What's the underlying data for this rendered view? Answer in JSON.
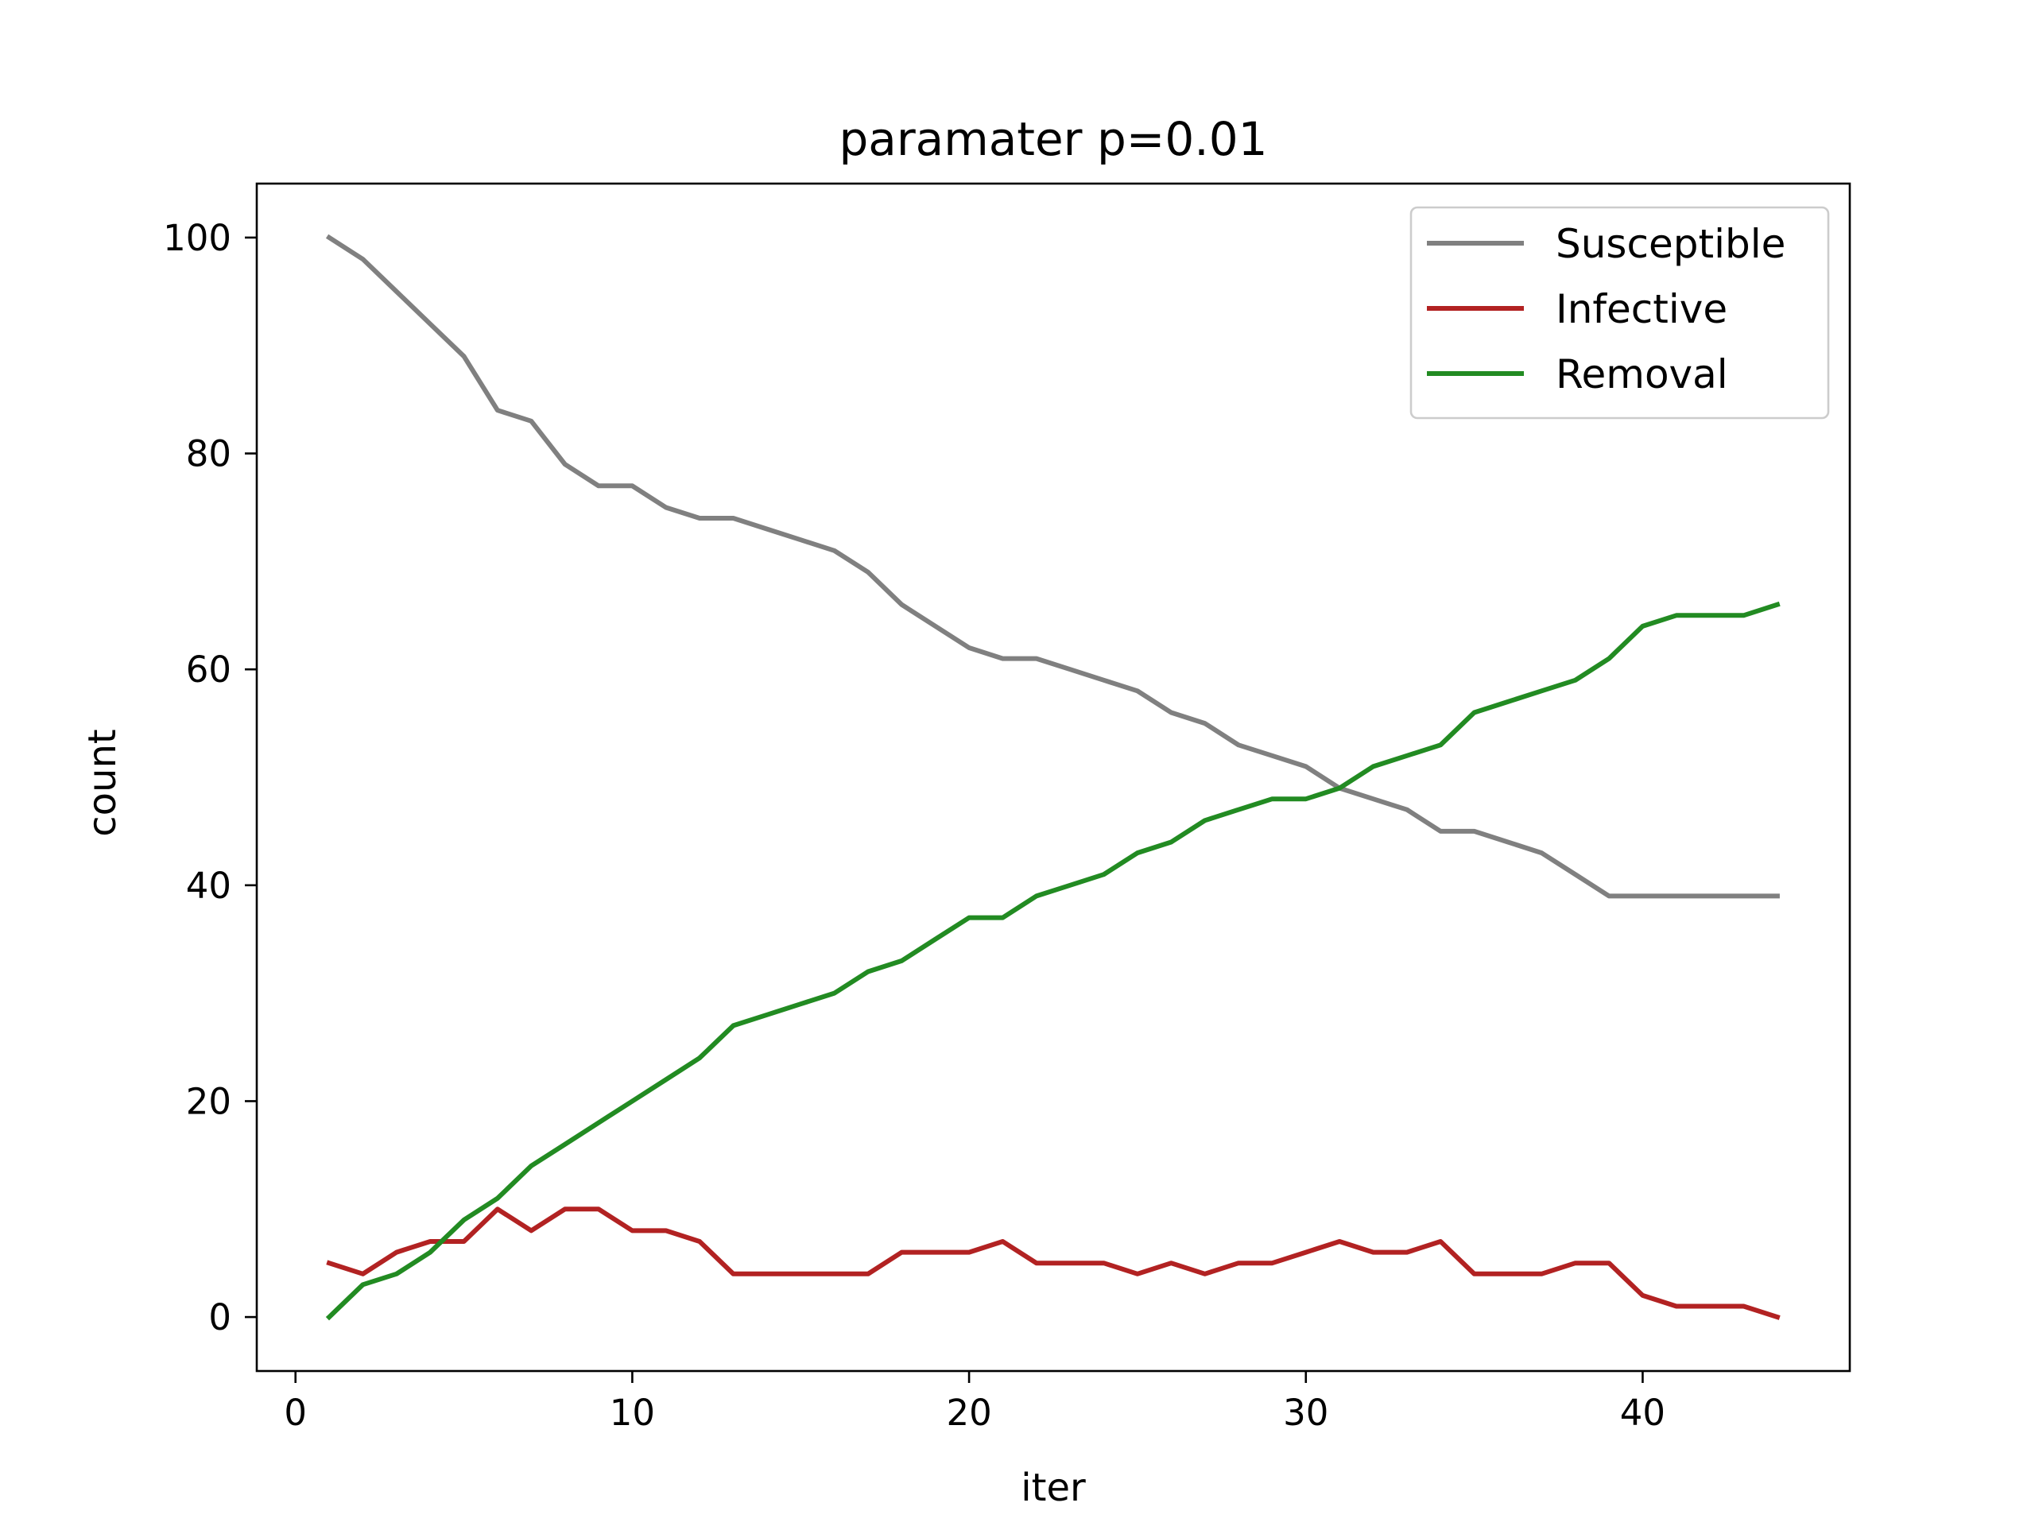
{
  "chart_data": {
    "type": "line",
    "title": "paramater p=0.01",
    "xlabel": "iter",
    "ylabel": "count",
    "xlim": [
      -1.15,
      46.15
    ],
    "ylim": [
      -5,
      105
    ],
    "xticks": [
      0,
      10,
      20,
      30,
      40
    ],
    "yticks": [
      0,
      20,
      40,
      60,
      80,
      100
    ],
    "grid": false,
    "legend_position": "top-right",
    "x": [
      1,
      2,
      3,
      4,
      5,
      6,
      7,
      8,
      9,
      10,
      11,
      12,
      13,
      14,
      15,
      16,
      17,
      18,
      19,
      20,
      21,
      22,
      23,
      24,
      25,
      26,
      27,
      28,
      29,
      30,
      31,
      32,
      33,
      34,
      35,
      36,
      37,
      38,
      39,
      40,
      41,
      42,
      43,
      44
    ],
    "series": [
      {
        "name": "Susceptible",
        "color": "#808080",
        "values": [
          100,
          98,
          95,
          92,
          89,
          84,
          83,
          79,
          77,
          77,
          75,
          74,
          74,
          73,
          72,
          71,
          69,
          66,
          64,
          62,
          61,
          61,
          60,
          59,
          58,
          56,
          55,
          53,
          52,
          51,
          49,
          48,
          47,
          45,
          45,
          44,
          43,
          41,
          39,
          39,
          39,
          39,
          39,
          39
        ]
      },
      {
        "name": "Infective",
        "color": "#b22222",
        "values": [
          5,
          4,
          6,
          7,
          7,
          10,
          8,
          10,
          10,
          8,
          8,
          7,
          4,
          4,
          4,
          4,
          4,
          6,
          6,
          6,
          7,
          5,
          5,
          5,
          4,
          5,
          4,
          5,
          5,
          6,
          7,
          6,
          6,
          7,
          4,
          4,
          4,
          5,
          5,
          2,
          1,
          1,
          1,
          0
        ]
      },
      {
        "name": "Removal",
        "color": "#228b22",
        "values": [
          0,
          3,
          4,
          6,
          9,
          11,
          14,
          16,
          18,
          20,
          22,
          24,
          27,
          28,
          29,
          30,
          32,
          33,
          35,
          37,
          37,
          39,
          40,
          41,
          43,
          44,
          46,
          47,
          48,
          48,
          49,
          51,
          52,
          53,
          56,
          57,
          58,
          59,
          61,
          64,
          65,
          65,
          65,
          66
        ]
      }
    ]
  }
}
